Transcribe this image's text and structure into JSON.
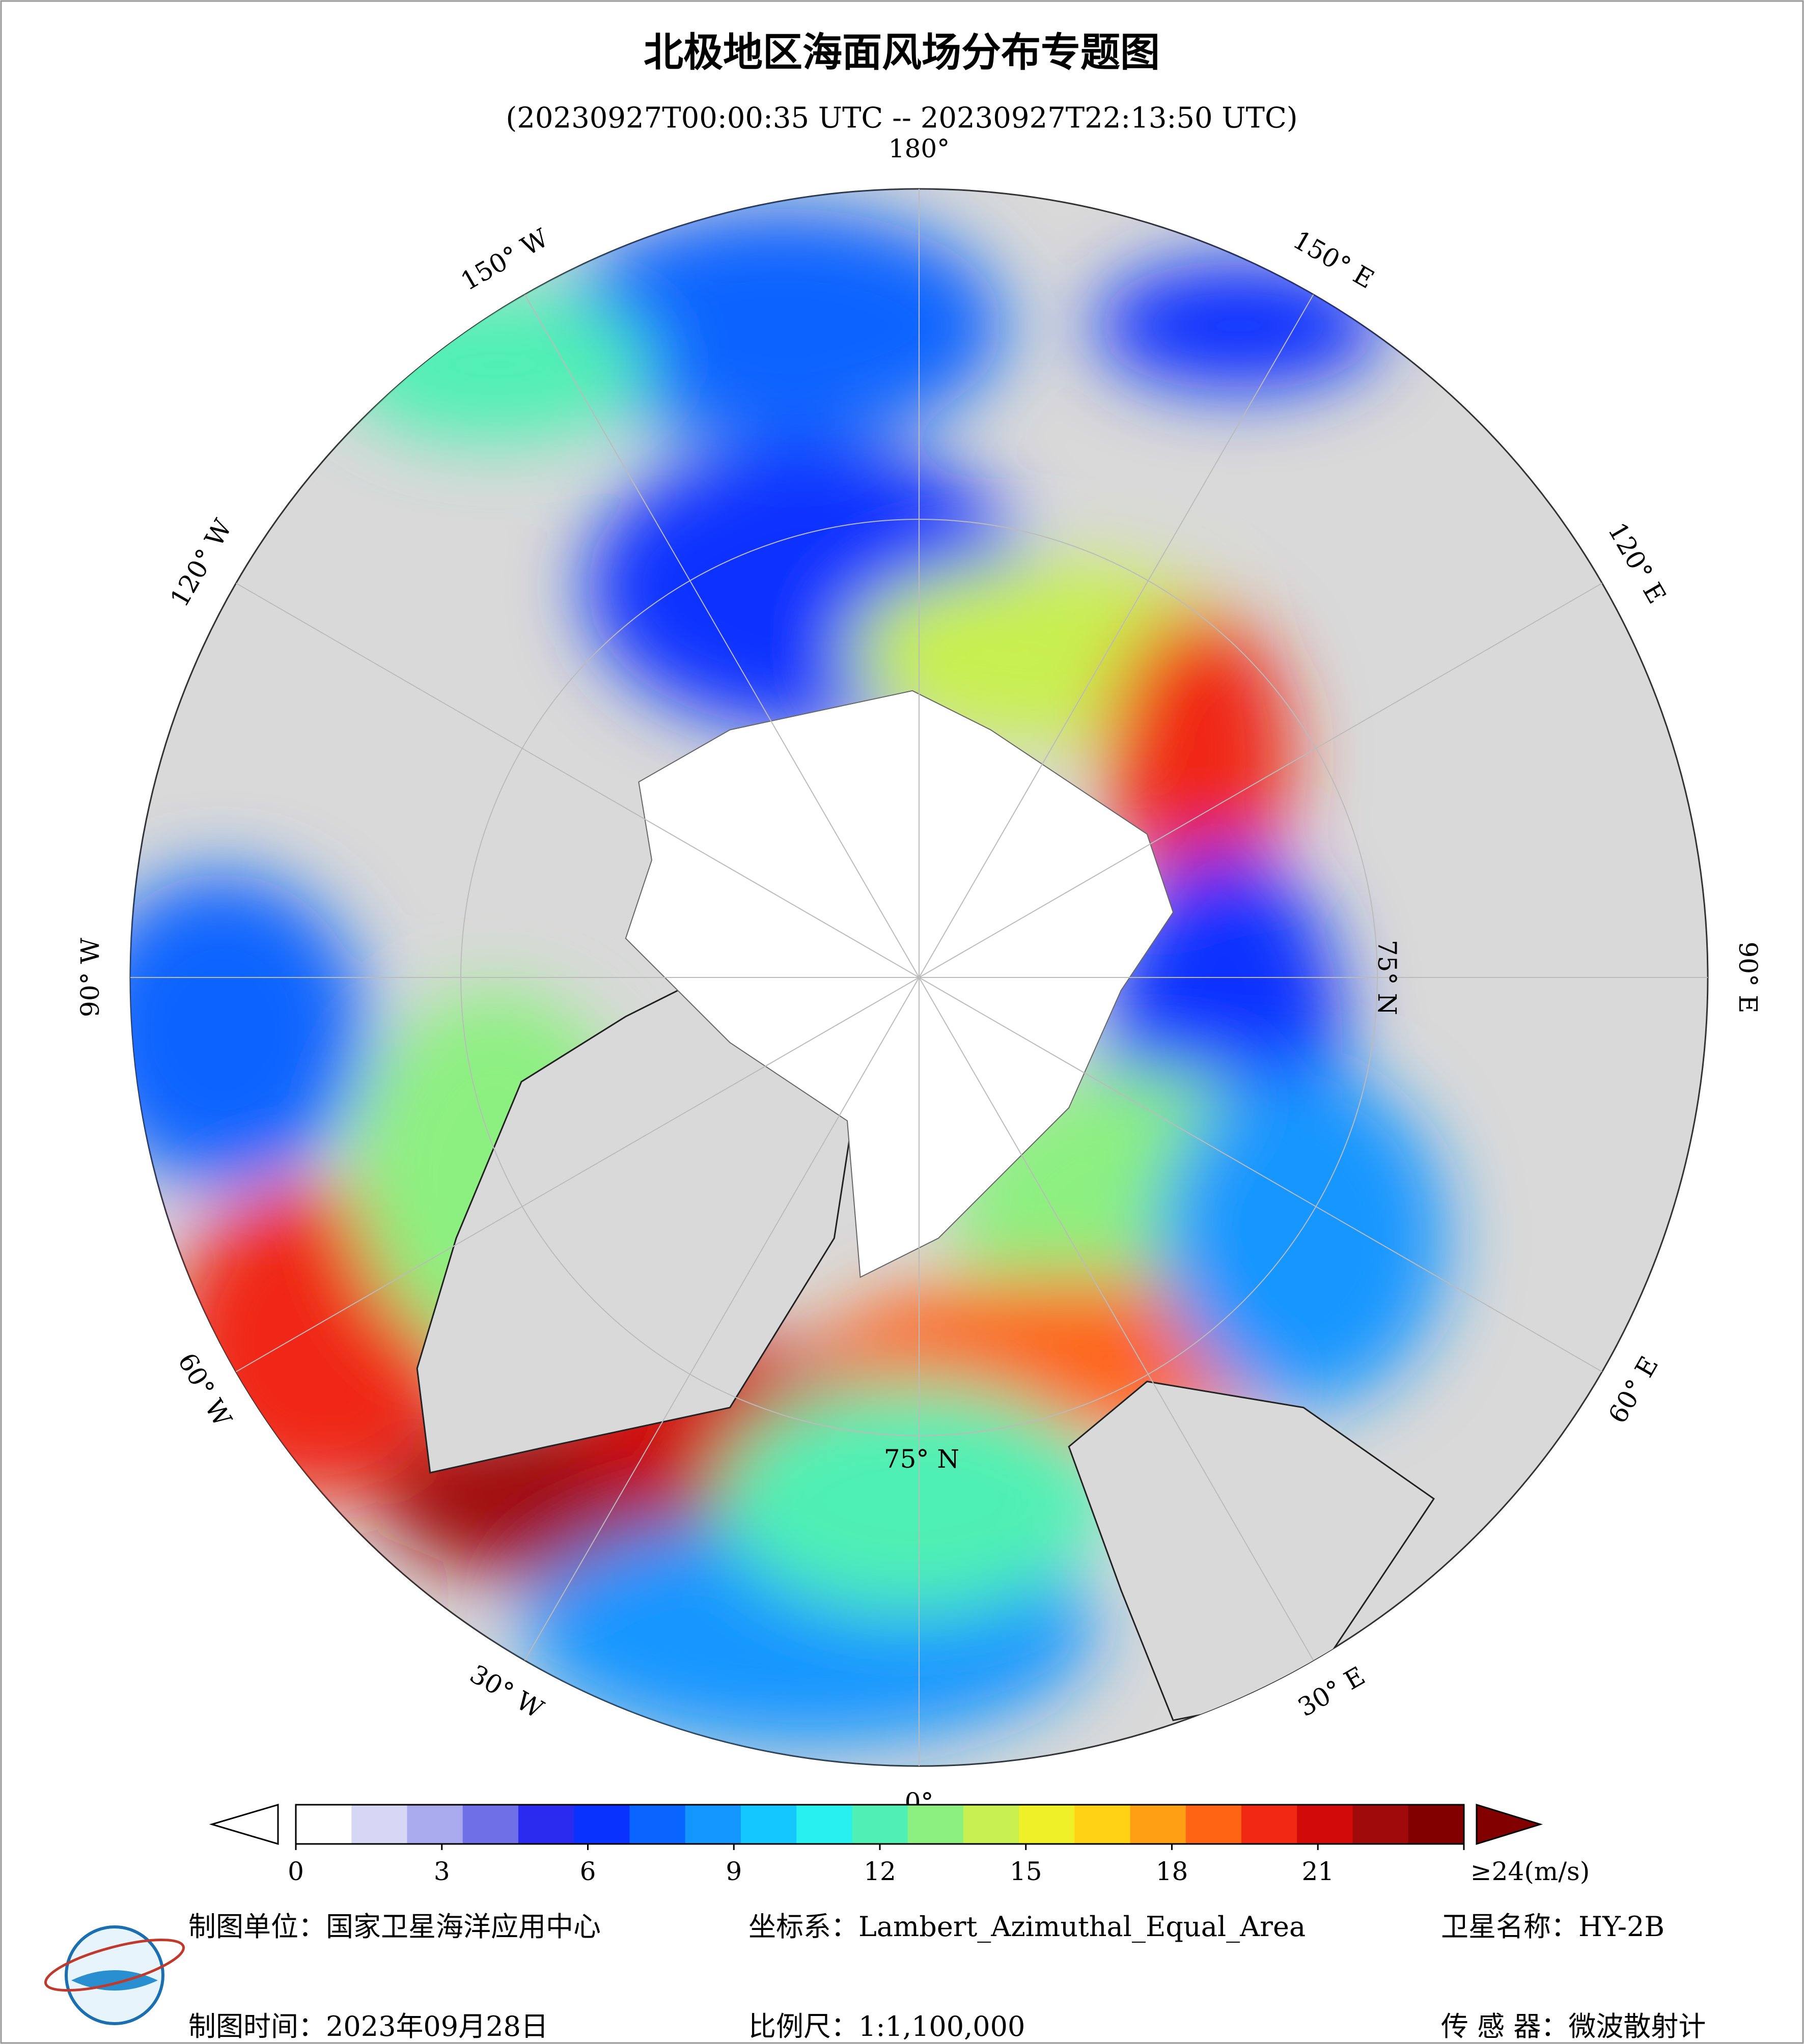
{
  "header": {
    "title": "北极地区海面风场分布专题图",
    "subtitle": "(20230927T00:00:35 UTC -- 20230927T22:13:50 UTC)"
  },
  "map": {
    "longitude_labels": [
      "180°",
      "150° E",
      "120° E",
      "90° E",
      "60° E",
      "30° E",
      "0°",
      "30° W",
      "60° W",
      "90° W",
      "120° W",
      "150° W"
    ],
    "latitude_labels": [
      "75° N",
      "75° N"
    ]
  },
  "colorbar": {
    "range": [
      0,
      24
    ],
    "ticks": [
      0,
      3,
      6,
      9,
      12,
      15,
      18,
      21,
      {
        "value": 24,
        "label": "≥24(m/s)"
      }
    ],
    "colors": [
      "#ffffff",
      "#d6d6f5",
      "#a9a9ee",
      "#6f6fe8",
      "#2b2bf0",
      "#0a32ff",
      "#0a64ff",
      "#1496ff",
      "#14c8ff",
      "#28f0f0",
      "#50f0b4",
      "#8cf080",
      "#c8f050",
      "#f0f028",
      "#ffd214",
      "#ffa014",
      "#ff6414",
      "#f02814",
      "#d20a0a",
      "#a00a0a",
      "#820000"
    ],
    "over_color": "#820000",
    "under_color": "#ffffff"
  },
  "footer": {
    "rows": [
      [
        "制图单位：国家卫星海洋应用中心",
        "坐标系：Lambert_Azimuthal_Equal_Area",
        "卫星名称：HY-2B"
      ],
      [
        "制图时间：2023年09月28日",
        "比例尺：1:1,100,000",
        "传 感 器：微波散射计"
      ]
    ]
  }
}
